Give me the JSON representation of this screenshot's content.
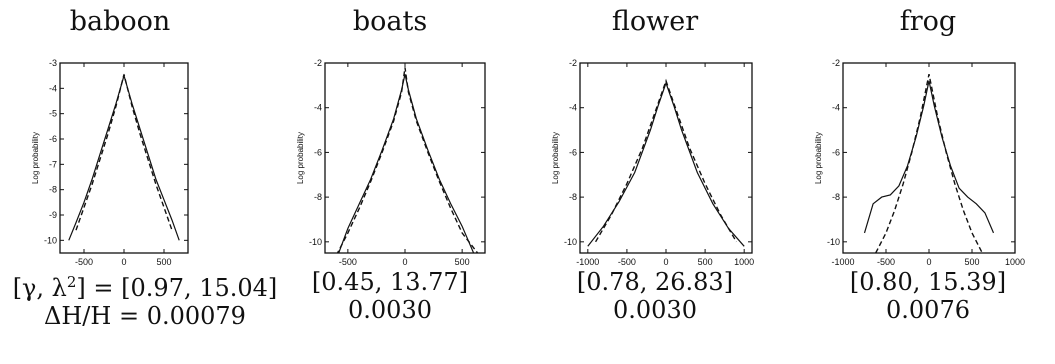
{
  "chart_data": [
    {
      "type": "line",
      "title": "baboon",
      "ylabel": "Log probability",
      "xlim": [
        -800,
        800
      ],
      "ylim": [
        -10.5,
        -3
      ],
      "xticks": [
        -500,
        0,
        500
      ],
      "yticks": [
        -3,
        -4,
        -5,
        -6,
        -7,
        -8,
        -9,
        -10
      ],
      "xticklabels": [
        "-500",
        "0",
        "500"
      ],
      "yticklabels": [
        "-3",
        "-4",
        "-5",
        "-6",
        "-7",
        "-8",
        "-9",
        "-10"
      ],
      "series": [
        {
          "style": "solid",
          "x": [
            -690,
            -600,
            -500,
            -400,
            -300,
            -200,
            -100,
            0,
            100,
            200,
            300,
            400,
            500,
            600,
            690
          ],
          "y": [
            -10,
            -9.3,
            -8.5,
            -7.6,
            -6.6,
            -5.6,
            -4.6,
            -3.5,
            -4.6,
            -5.6,
            -6.6,
            -7.6,
            -8.4,
            -9.2,
            -10
          ]
        },
        {
          "style": "dashed",
          "x": [
            -600,
            -500,
            -400,
            -300,
            -200,
            -100,
            0,
            100,
            200,
            300,
            400,
            500,
            600
          ],
          "y": [
            -9.6,
            -8.7,
            -7.8,
            -6.8,
            -5.8,
            -4.7,
            -3.45,
            -4.7,
            -5.8,
            -6.8,
            -7.8,
            -8.7,
            -9.6
          ]
        }
      ],
      "params_prefix": "[γ, λ",
      "params_mid": "] = ",
      "params": "[0.97, 15.04]",
      "entropy_prefix": "ΔH/H = ",
      "entropy": "0.00079"
    },
    {
      "type": "line",
      "title": "boats",
      "ylabel": "Log probability",
      "xlim": [
        -700,
        700
      ],
      "ylim": [
        -10.5,
        -2
      ],
      "xticks": [
        -500,
        0,
        500
      ],
      "yticks": [
        -2,
        -4,
        -6,
        -8,
        -10
      ],
      "xticklabels": [
        "-500",
        "0",
        "500"
      ],
      "yticklabels": [
        "-2",
        "-4",
        "-6",
        "-8",
        "-10"
      ],
      "series": [
        {
          "style": "solid",
          "x": [
            -580,
            -500,
            -400,
            -300,
            -200,
            -100,
            -30,
            0,
            30,
            100,
            200,
            300,
            400,
            500,
            600
          ],
          "y": [
            -10.5,
            -9.4,
            -8.3,
            -7.2,
            -5.9,
            -4.5,
            -3.2,
            -2.5,
            -3.2,
            -4.5,
            -5.9,
            -7.2,
            -8.3,
            -9.3,
            -10.5
          ]
        },
        {
          "style": "dashed",
          "x": [
            -600,
            -500,
            -400,
            -300,
            -200,
            -100,
            -30,
            0,
            30,
            100,
            200,
            300,
            400,
            500,
            650
          ],
          "y": [
            -10.6,
            -9.6,
            -8.5,
            -7.3,
            -6.0,
            -4.6,
            -3.3,
            -2.2,
            -3.3,
            -4.6,
            -6.0,
            -7.3,
            -8.5,
            -9.6,
            -10.6
          ]
        }
      ],
      "params": "[0.45, 13.77]",
      "entropy": "0.0030"
    },
    {
      "type": "line",
      "title": "flower",
      "ylabel": "Log probability",
      "xlim": [
        -1100,
        1100
      ],
      "ylim": [
        -10.5,
        -2
      ],
      "xticks": [
        -1000,
        -500,
        0,
        500,
        1000
      ],
      "yticks": [
        -2,
        -4,
        -6,
        -8,
        -10
      ],
      "xticklabels": [
        "-1000",
        "-500",
        "0",
        "500",
        "1000"
      ],
      "yticklabels": [
        "-2",
        "-4",
        "-6",
        "-8",
        "-10"
      ],
      "series": [
        {
          "style": "solid",
          "x": [
            -1000,
            -800,
            -600,
            -400,
            -200,
            -100,
            0,
            100,
            200,
            400,
            600,
            800,
            1000
          ],
          "y": [
            -10.2,
            -9.3,
            -8.2,
            -6.9,
            -5.0,
            -3.9,
            -2.9,
            -3.9,
            -5.0,
            -6.9,
            -8.3,
            -9.4,
            -10.2
          ]
        },
        {
          "style": "dashed",
          "x": [
            -900,
            -700,
            -500,
            -300,
            -150,
            0,
            150,
            300,
            500,
            700,
            900
          ],
          "y": [
            -10.0,
            -8.8,
            -7.4,
            -5.8,
            -4.3,
            -2.8,
            -4.3,
            -5.8,
            -7.4,
            -8.8,
            -10.0
          ]
        }
      ],
      "params": "[0.78, 26.83]",
      "entropy": "0.0030"
    },
    {
      "type": "line",
      "title": "frog",
      "ylabel": "Log probability",
      "xlim": [
        -1000,
        1000
      ],
      "ylim": [
        -10.5,
        -2
      ],
      "xticks": [
        -1000,
        -500,
        0,
        500,
        1000
      ],
      "yticks": [
        -2,
        -4,
        -6,
        -8,
        -10
      ],
      "xticklabels": [
        "-1000",
        "-500",
        "0",
        "500",
        "1000"
      ],
      "yticklabels": [
        "-2",
        "-4",
        "-6",
        "-8",
        "-10"
      ],
      "series": [
        {
          "style": "solid",
          "x": [
            -750,
            -650,
            -550,
            -450,
            -350,
            -250,
            -150,
            -60,
            0,
            60,
            150,
            250,
            350,
            450,
            550,
            650,
            750
          ],
          "y": [
            -9.6,
            -8.3,
            -8.0,
            -7.9,
            -7.5,
            -6.6,
            -5.3,
            -3.9,
            -2.8,
            -3.9,
            -5.3,
            -6.6,
            -7.6,
            -8.0,
            -8.3,
            -8.7,
            -9.6
          ]
        },
        {
          "style": "dashed",
          "x": [
            -620,
            -500,
            -400,
            -300,
            -200,
            -100,
            0,
            100,
            200,
            300,
            400,
            500,
            620
          ],
          "y": [
            -10.5,
            -9.6,
            -8.6,
            -7.4,
            -6.0,
            -4.4,
            -2.5,
            -4.4,
            -6.0,
            -7.4,
            -8.6,
            -9.6,
            -10.5
          ]
        }
      ],
      "params": "[0.80, 15.39]",
      "entropy": "0.0076"
    }
  ]
}
